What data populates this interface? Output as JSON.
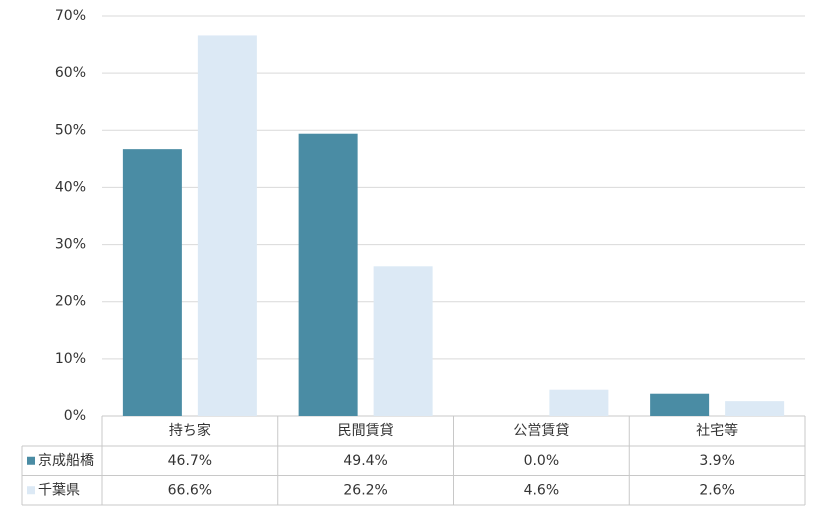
{
  "chart_data": {
    "type": "bar",
    "categories": [
      "持ち家",
      "民間賃貸",
      "公営賃貸",
      "社宅等"
    ],
    "series": [
      {
        "name": "京成船橋",
        "color": "#4a8ca4",
        "values": [
          46.7,
          49.4,
          0.0,
          3.9
        ],
        "value_labels": [
          "46.7%",
          "49.4%",
          "0.0%",
          "3.9%"
        ]
      },
      {
        "name": "千葉県",
        "color": "#dce9f5",
        "values": [
          66.6,
          26.2,
          4.6,
          2.6
        ],
        "value_labels": [
          "66.6%",
          "26.2%",
          "4.6%",
          "2.6%"
        ]
      }
    ],
    "ylim": [
      0,
      70
    ],
    "yticks": [
      {
        "value": 0,
        "label": "0%"
      },
      {
        "value": 10,
        "label": "10%"
      },
      {
        "value": 20,
        "label": "20%"
      },
      {
        "value": 30,
        "label": "30%"
      },
      {
        "value": 40,
        "label": "40%"
      },
      {
        "value": 50,
        "label": "50%"
      },
      {
        "value": 60,
        "label": "60%"
      },
      {
        "value": 70,
        "label": "70%"
      }
    ],
    "grid": true
  }
}
